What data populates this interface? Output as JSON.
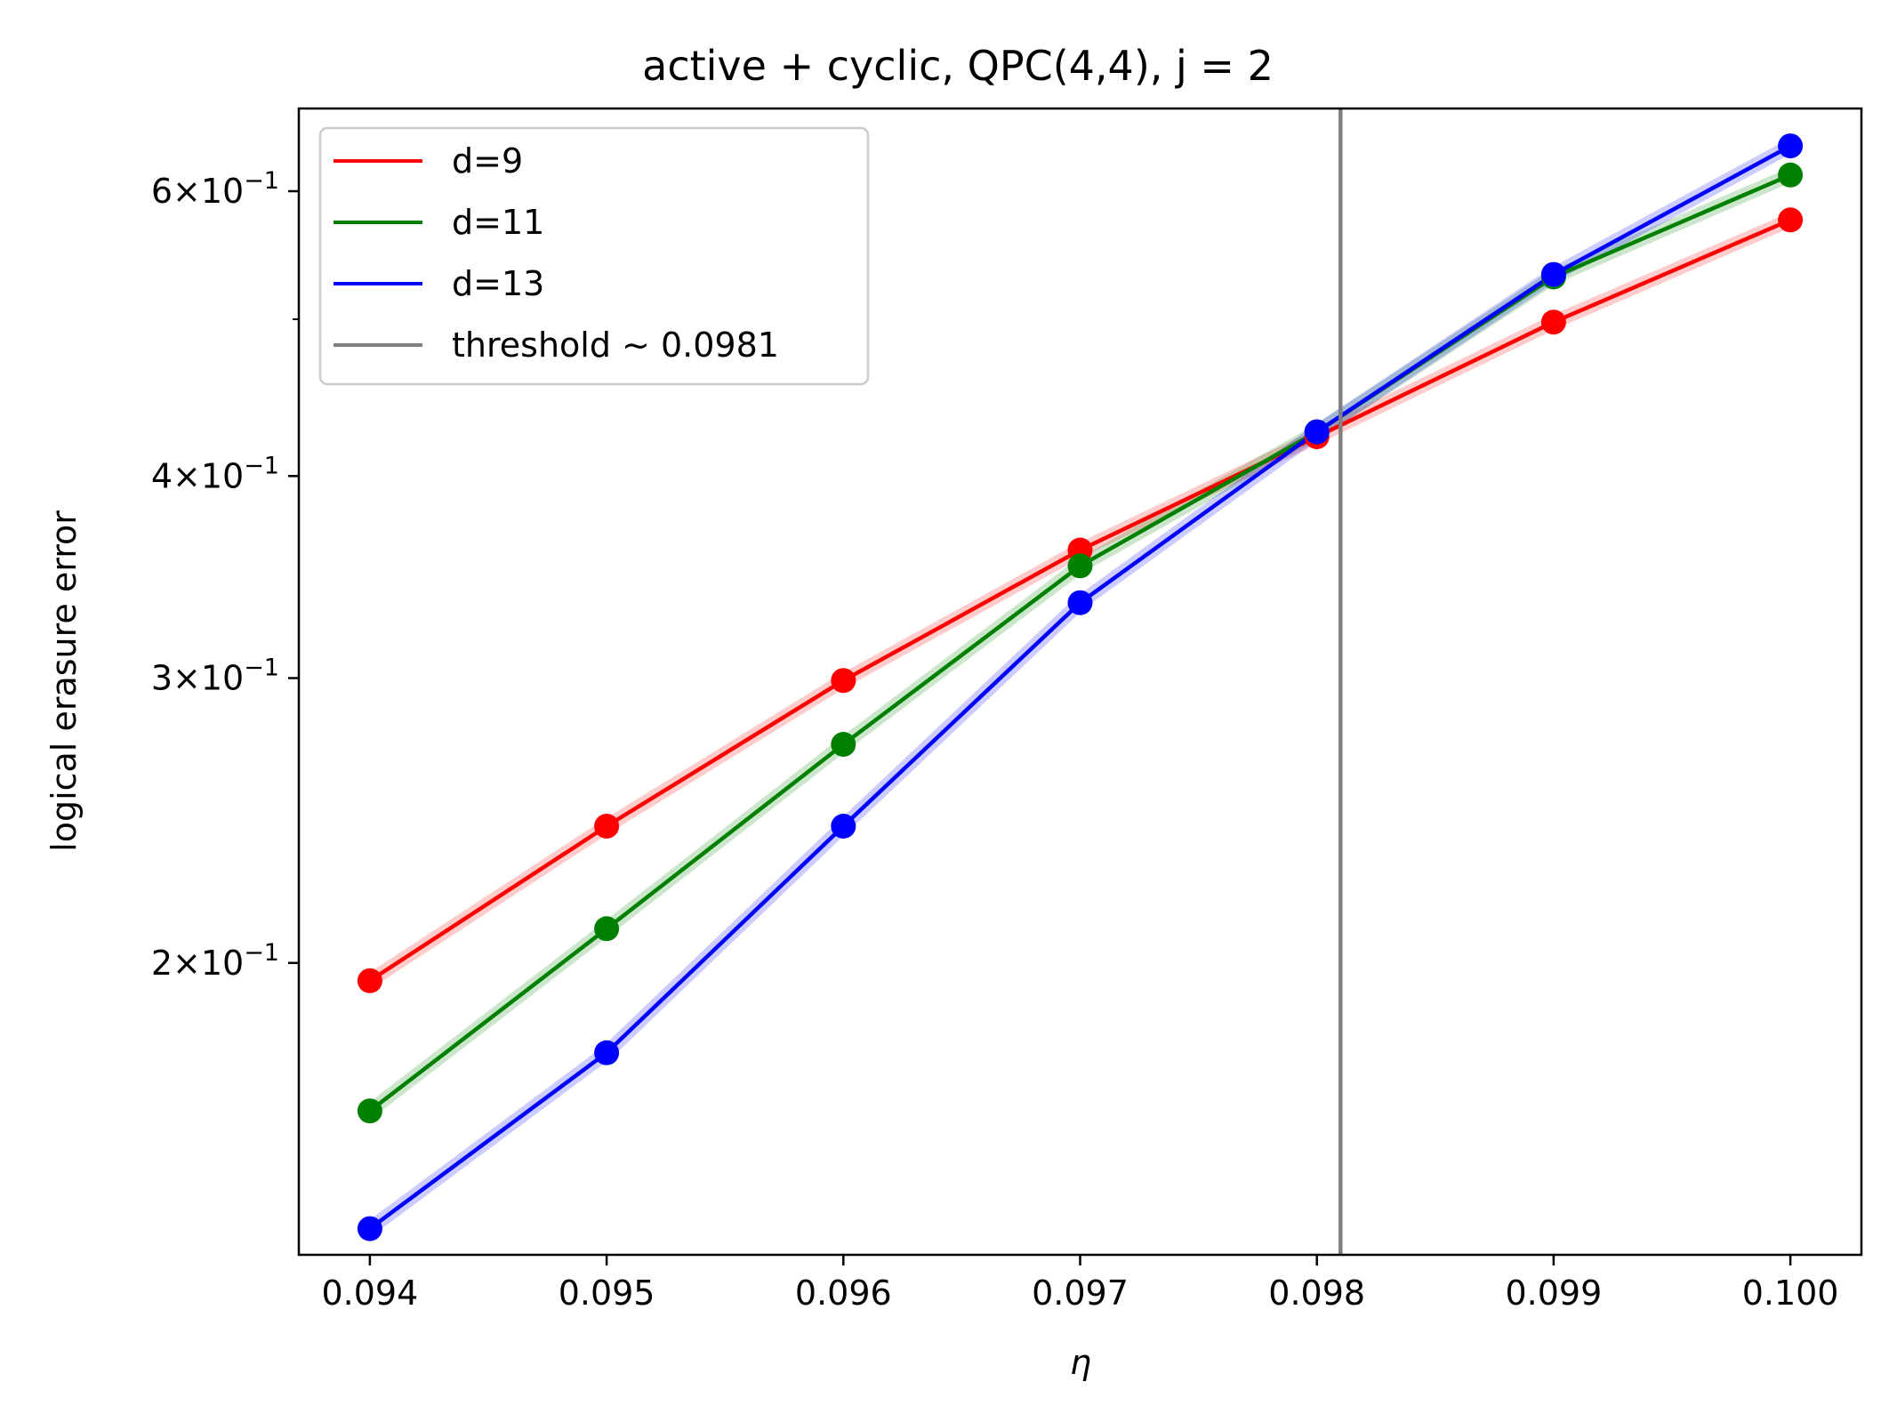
{
  "chart_data": {
    "type": "line",
    "title": "active + cyclic, QPC(4,4), j = 2",
    "xlabel": "η",
    "ylabel": "logical erasure error",
    "xscale": "linear",
    "yscale": "log",
    "xlim": [
      0.0937,
      0.1003
    ],
    "ylim": [
      0.132,
      0.675
    ],
    "x": [
      0.094,
      0.095,
      0.096,
      0.097,
      0.098,
      0.099,
      0.1
    ],
    "xticks": [
      0.094,
      0.095,
      0.096,
      0.097,
      0.098,
      0.099,
      0.1
    ],
    "xtick_labels": [
      "0.094",
      "0.095",
      "0.096",
      "0.097",
      "0.098",
      "0.099",
      "0.100"
    ],
    "yticks": [
      {
        "value": 0.2,
        "mantissa": "2",
        "base": "10",
        "exp": "−1"
      },
      {
        "value": 0.3,
        "mantissa": "3",
        "base": "10",
        "exp": "−1"
      },
      {
        "value": 0.4,
        "mantissa": "4",
        "base": "10",
        "exp": "−1"
      },
      {
        "value": 0.6,
        "mantissa": "6",
        "base": "10",
        "exp": "−1"
      }
    ],
    "yminor_ticks": [
      0.5
    ],
    "grid": false,
    "legend_position": "top-left",
    "series": [
      {
        "name": "d=9",
        "color": "#ff0000",
        "values": [
          0.195,
          0.243,
          0.299,
          0.36,
          0.423,
          0.498,
          0.576
        ]
      },
      {
        "name": "d=11",
        "color": "#008000",
        "values": [
          0.162,
          0.21,
          0.273,
          0.352,
          0.426,
          0.531,
          0.614
        ]
      },
      {
        "name": "d=13",
        "color": "#0000ff",
        "values": [
          0.137,
          0.176,
          0.243,
          0.334,
          0.426,
          0.533,
          0.64
        ]
      }
    ],
    "vline": {
      "name": "threshold ~ 0.0981",
      "x": 0.0981,
      "color": "#808080"
    }
  }
}
